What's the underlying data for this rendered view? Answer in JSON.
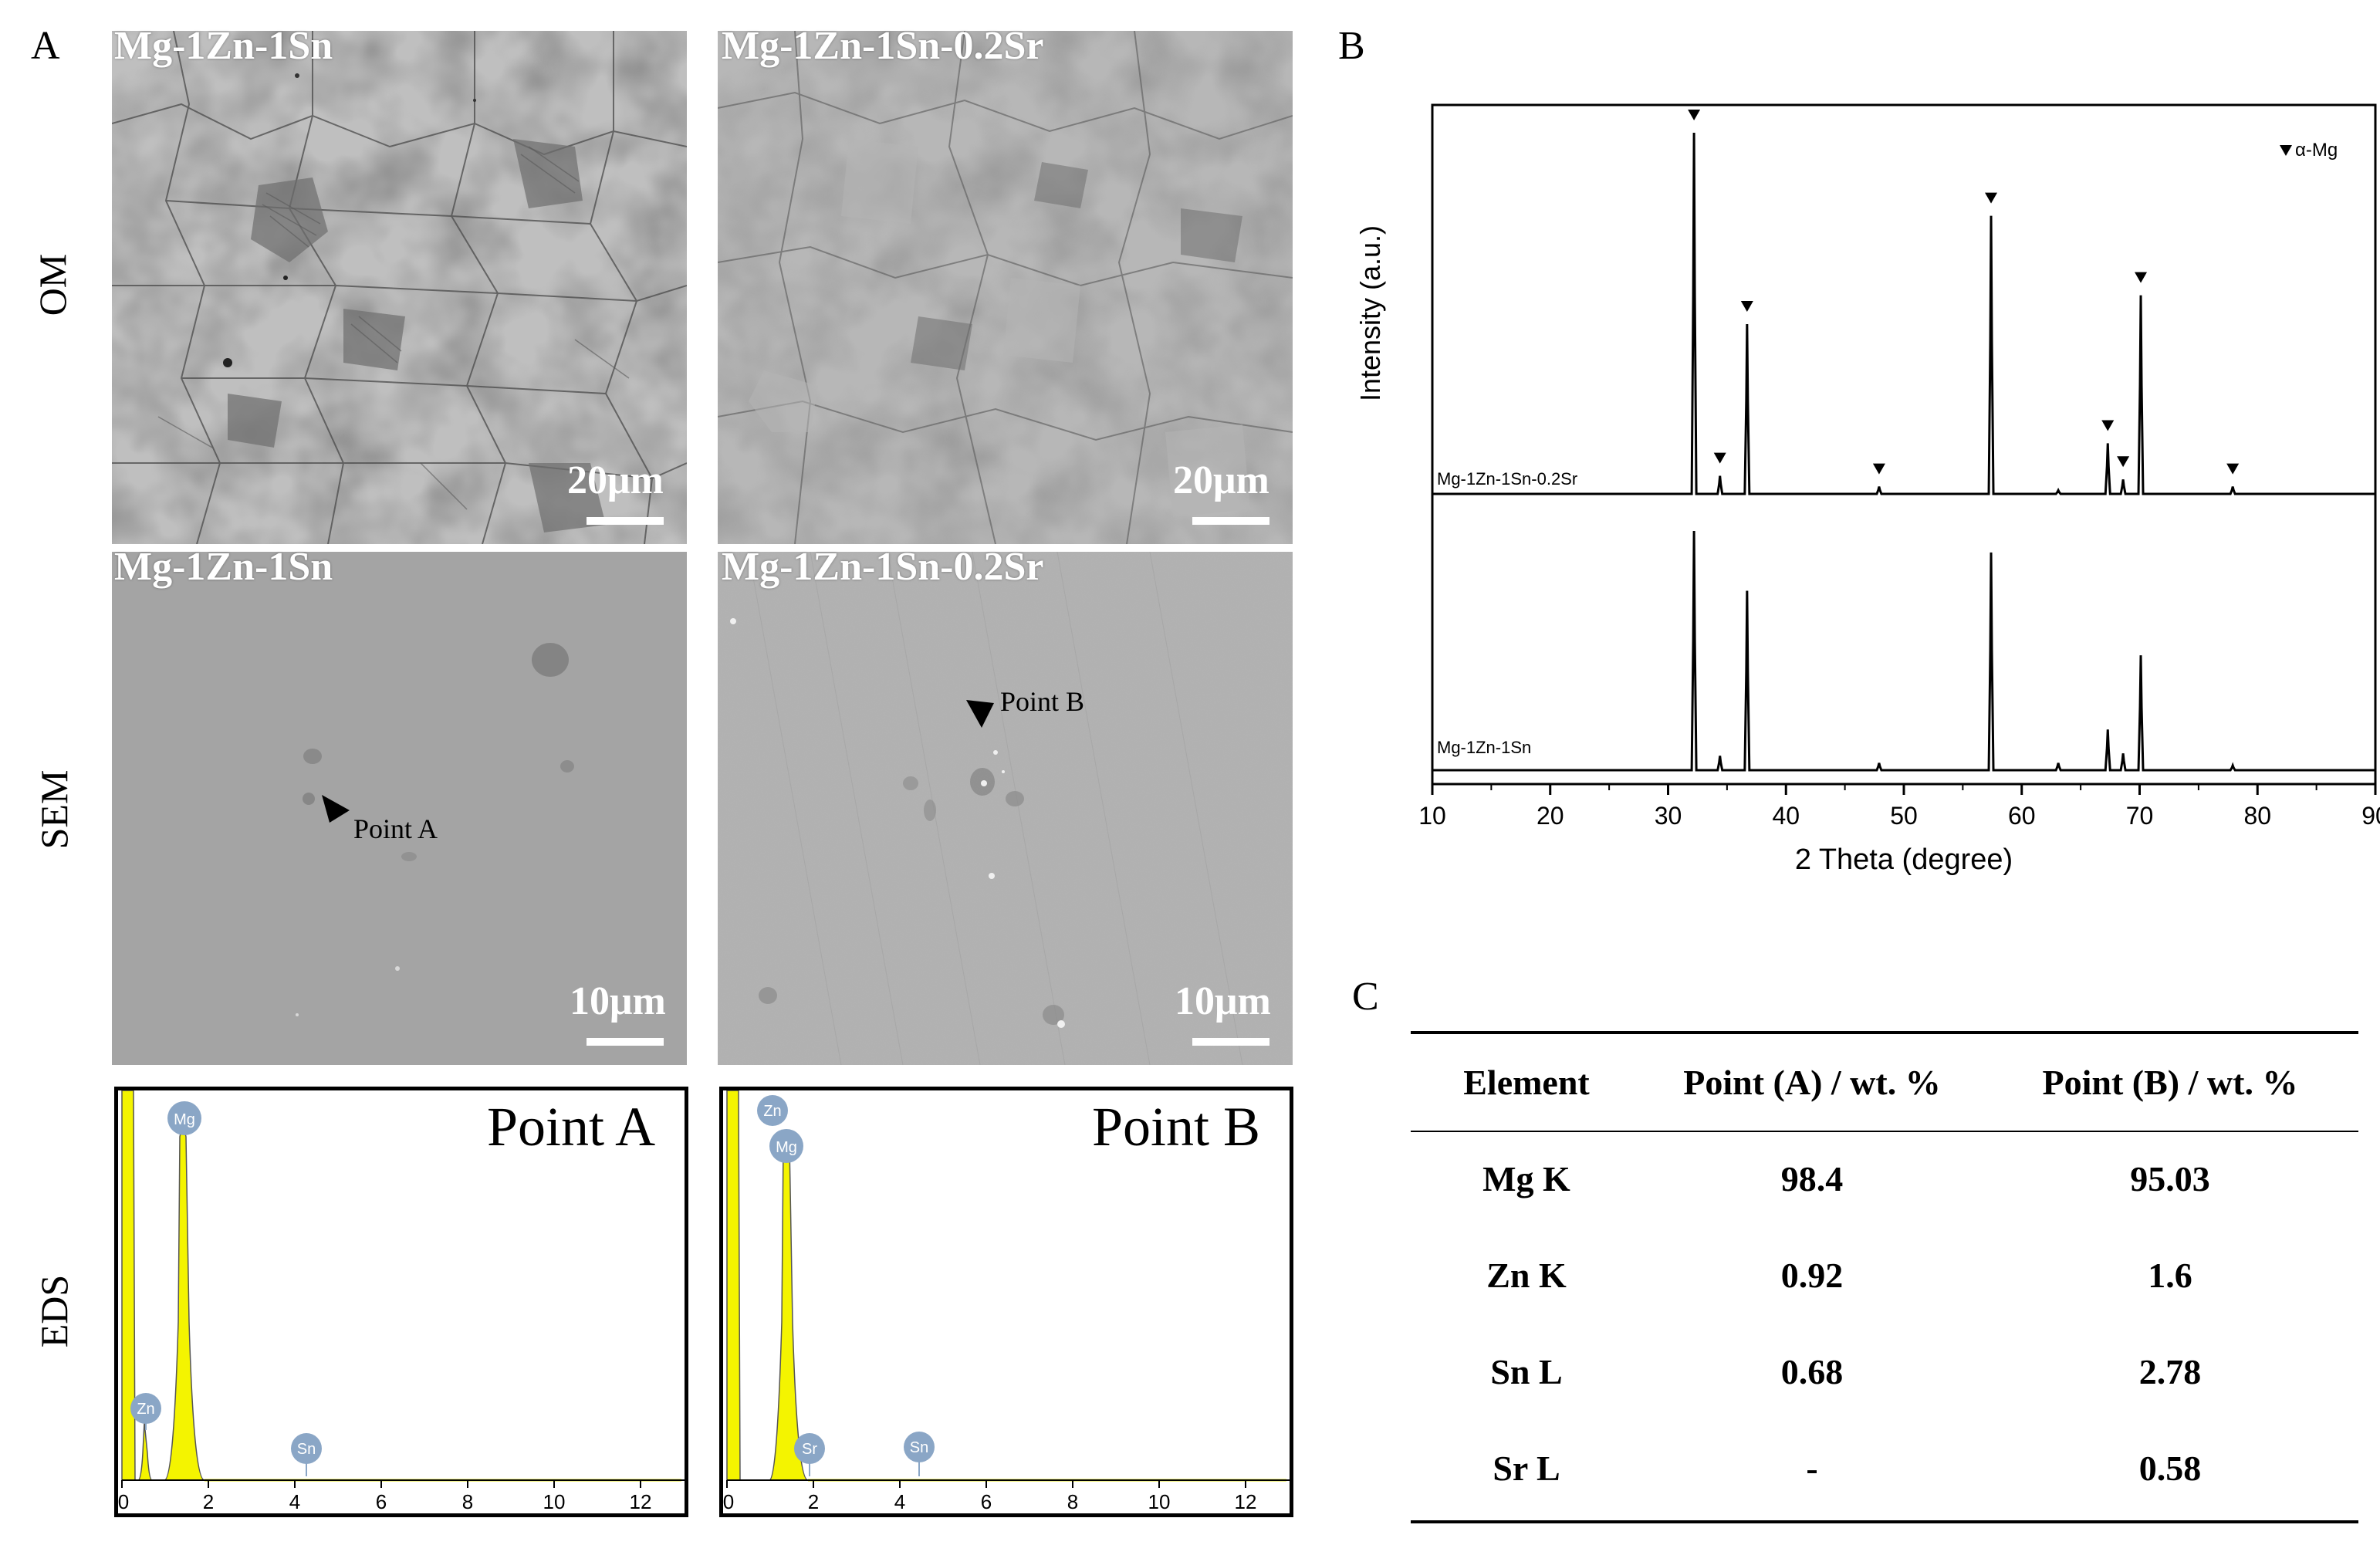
{
  "panel_a": {
    "letter": "A",
    "row_labels": {
      "om": "OM",
      "sem": "SEM",
      "eds": "EDS"
    },
    "om": [
      {
        "title": "Mg-1Zn-1Sn",
        "scale": "20μm"
      },
      {
        "title": "Mg-1Zn-1Sn-0.2Sr",
        "scale": "20μm"
      }
    ],
    "sem": [
      {
        "title": "Mg-1Zn-1Sn",
        "scale": "10μm",
        "point_label": "Point A"
      },
      {
        "title": "Mg-1Zn-1Sn-0.2Sr",
        "scale": "10μm",
        "point_label": "Point B"
      }
    ],
    "eds": [
      {
        "title": "Point A",
        "peaks": [
          "Mg",
          "Zn",
          "Sn"
        ],
        "x_ticks": [
          "0",
          "2",
          "4",
          "6",
          "8",
          "10",
          "12"
        ]
      },
      {
        "title": "Point B",
        "peaks": [
          "Zn",
          "Mg",
          "Sr",
          "Sn"
        ],
        "x_ticks": [
          "0",
          "2",
          "4",
          "6",
          "8",
          "10",
          "12"
        ]
      }
    ]
  },
  "panel_b": {
    "letter": "B",
    "legend": "α-Mg",
    "series_labels": [
      "Mg-1Zn-1Sn-0.2Sr",
      "Mg-1Zn-1Sn"
    ]
  },
  "chart_data": {
    "type": "line",
    "xlabel": "2 Theta (degree)",
    "ylabel": "Intensity (a.u.)",
    "xlim": [
      10,
      90
    ],
    "x_ticks": [
      "10",
      "20",
      "30",
      "40",
      "50",
      "60",
      "70",
      "80",
      "90"
    ],
    "marker_positions": [
      32.2,
      34.4,
      36.7,
      47.9,
      57.4,
      67.3,
      68.6,
      70.1,
      77.9
    ],
    "series": [
      {
        "name": "Mg-1Zn-1Sn-0.2Sr",
        "peaks": [
          [
            32.2,
            100
          ],
          [
            34.4,
            5
          ],
          [
            36.7,
            47
          ],
          [
            47.9,
            2
          ],
          [
            57.4,
            77
          ],
          [
            63.1,
            1
          ],
          [
            67.3,
            14
          ],
          [
            68.6,
            4
          ],
          [
            70.1,
            55
          ],
          [
            77.9,
            2
          ]
        ]
      },
      {
        "name": "Mg-1Zn-1Sn",
        "peaks": [
          [
            32.2,
            100
          ],
          [
            34.4,
            6
          ],
          [
            36.7,
            75
          ],
          [
            47.9,
            3
          ],
          [
            57.4,
            91
          ],
          [
            63.1,
            3
          ],
          [
            67.3,
            17
          ],
          [
            68.6,
            7
          ],
          [
            70.1,
            48
          ],
          [
            77.9,
            2
          ]
        ]
      }
    ],
    "color": "#000000"
  },
  "panel_c": {
    "letter": "C",
    "headers": [
      "Element",
      "Point (A) / wt. %",
      "Point (B) / wt. %"
    ],
    "rows": [
      [
        "Mg K",
        "98.4",
        "95.03"
      ],
      [
        "Zn K",
        "0.92",
        "1.6"
      ],
      [
        "Sn L",
        "0.68",
        "2.78"
      ],
      [
        "Sr L",
        "-",
        "0.58"
      ]
    ]
  },
  "colors": {
    "eds_fill": "#f4f400",
    "eds_peak_label": "#8aa6c6"
  }
}
